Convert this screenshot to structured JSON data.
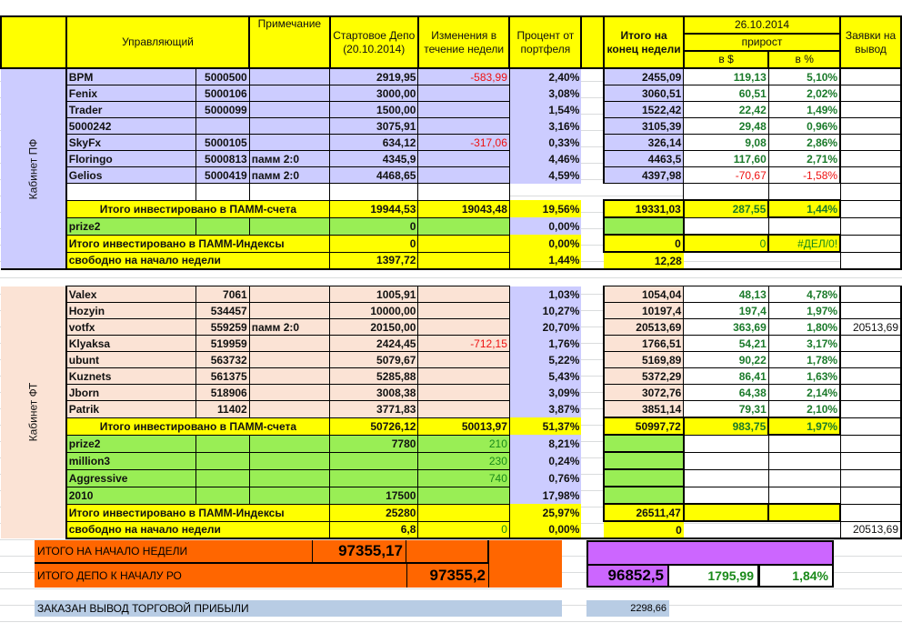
{
  "header": {
    "manager": "Управляющий",
    "note": "Примечание",
    "start": "Стартовое Депо (20.10.2014)",
    "change": "Изменения в течение недели",
    "pct": "Процент от портфеля",
    "end": "Итого на конец недели",
    "date": "26.10.2014",
    "growth": "прирост",
    "in_usd": "в $",
    "in_pct": "в %",
    "withdraw": "Заявки на вывод"
  },
  "sections": [
    {
      "label": "Кабинет ПФ",
      "key": "pf",
      "blank_row": true,
      "managers": [
        {
          "name": "BPM",
          "id": "5000500",
          "note": "",
          "start": "2919,95",
          "change": "-583,99",
          "pct": "2,40%",
          "end": "2455,09",
          "gain_usd": "119,13",
          "gain_pct": "5,10%",
          "withdraw": ""
        },
        {
          "name": "Fenix",
          "id": "5000106",
          "note": "",
          "start": "3000,00",
          "change": "",
          "pct": "3,08%",
          "end": "3060,51",
          "gain_usd": "60,51",
          "gain_pct": "2,02%",
          "withdraw": ""
        },
        {
          "name": "Trader",
          "id": "5000099",
          "note": "",
          "start": "1500,00",
          "change": "",
          "pct": "1,54%",
          "end": "1522,42",
          "gain_usd": "22,42",
          "gain_pct": "1,49%",
          "withdraw": ""
        },
        {
          "name": "5000242",
          "id": "",
          "note": "",
          "start": "3075,91",
          "change": "",
          "pct": "3,16%",
          "end": "3105,39",
          "gain_usd": "29,48",
          "gain_pct": "0,96%",
          "withdraw": ""
        },
        {
          "name": "SkyFx",
          "id": "5000105",
          "note": "",
          "start": "634,12",
          "change": "-317,06",
          "pct": "0,33%",
          "end": "326,14",
          "gain_usd": "9,08",
          "gain_pct": "2,86%",
          "withdraw": ""
        },
        {
          "name": "Floringo",
          "id": "5000813",
          "note": "памм 2:0",
          "start": "4345,9",
          "change": "",
          "pct": "4,46%",
          "end": "4463,5",
          "gain_usd": "117,60",
          "gain_pct": "2,71%",
          "withdraw": ""
        },
        {
          "name": "Gelios",
          "id": "5000419",
          "note": "памм 2:0",
          "start": "4468,65",
          "change": "",
          "pct": "4,59%",
          "end": "4397,98",
          "gain_usd": "-70,67",
          "gain_pct": "-1,58%",
          "withdraw": ""
        }
      ],
      "total_accounts": {
        "label": "Итого инвестировано в ПАММ-счета",
        "start": "19944,53",
        "change": "19043,48",
        "pct": "19,56%",
        "end": "19331,03",
        "gain_usd": "287,55",
        "gain_pct": "1,44%"
      },
      "indexes": [
        {
          "name": "prize2",
          "start": "0",
          "change": "",
          "pct": "0,00%"
        }
      ],
      "total_indexes": {
        "label": "Итого инвестировано в ПАММ-Индексы",
        "start": "0",
        "pct": "0,00%",
        "end": "0",
        "gain_usd": "0",
        "gain_pct": "#ДЕЛ/0!"
      },
      "free": {
        "label": "свободно на начало недели",
        "start": "1397,72",
        "change": "",
        "pct": "1,44%",
        "end": "12,28",
        "withdraw": ""
      }
    },
    {
      "label": "Кабинет ФТ",
      "key": "ft",
      "blank_row": false,
      "managers": [
        {
          "name": "Valex",
          "id": "7061",
          "note": "",
          "start": "1005,91",
          "change": "",
          "pct": "1,03%",
          "end": "1054,04",
          "gain_usd": "48,13",
          "gain_pct": "4,78%",
          "withdraw": ""
        },
        {
          "name": "Hozyin",
          "id": "534457",
          "note": "",
          "start": "10000,00",
          "change": "",
          "pct": "10,27%",
          "end": "10197,4",
          "gain_usd": "197,4",
          "gain_pct": "1,97%",
          "withdraw": ""
        },
        {
          "name": "votfx",
          "id": "559259",
          "note": "памм 2:0",
          "start": "20150,00",
          "change": "",
          "pct": "20,70%",
          "end": "20513,69",
          "gain_usd": "363,69",
          "gain_pct": "1,80%",
          "withdraw": "20513,69"
        },
        {
          "name": "Klyaksa",
          "id": "519959",
          "note": "",
          "start": "2424,45",
          "change": "-712,15",
          "pct": "1,76%",
          "end": "1766,51",
          "gain_usd": "54,21",
          "gain_pct": "3,17%",
          "withdraw": ""
        },
        {
          "name": "ubunt",
          "id": "563732",
          "note": "",
          "start": "5079,67",
          "change": "",
          "pct": "5,22%",
          "end": "5169,89",
          "gain_usd": "90,22",
          "gain_pct": "1,78%",
          "withdraw": ""
        },
        {
          "name": "Kuznets",
          "id": "561375",
          "note": "",
          "start": "5285,88",
          "change": "",
          "pct": "5,43%",
          "end": "5372,29",
          "gain_usd": "86,41",
          "gain_pct": "1,63%",
          "withdraw": ""
        },
        {
          "name": "Jborn",
          "id": "518906",
          "note": "",
          "start": "3008,38",
          "change": "",
          "pct": "3,09%",
          "end": "3072,76",
          "gain_usd": "64,38",
          "gain_pct": "2,14%",
          "withdraw": ""
        },
        {
          "name": "Patrik",
          "id": "11402",
          "note": "",
          "start": "3771,83",
          "change": "",
          "pct": "3,87%",
          "end": "3851,14",
          "gain_usd": "79,31",
          "gain_pct": "2,10%",
          "withdraw": ""
        }
      ],
      "total_accounts": {
        "label": "Итого инвестировано в ПАММ-счета",
        "start": "50726,12",
        "change": "50013,97",
        "pct": "51,37%",
        "end": "50997,72",
        "gain_usd": "983,75",
        "gain_pct": "1,97%"
      },
      "indexes": [
        {
          "name": "prize2",
          "start": "7780",
          "change": "210",
          "pct": "8,21%"
        },
        {
          "name": "million3",
          "start": "",
          "change": "230",
          "pct": "0,24%"
        },
        {
          "name": "Aggressive",
          "start": "",
          "change": "740",
          "pct": "0,76%"
        },
        {
          "name": "2010",
          "start": "17500",
          "change": "",
          "pct": "17,98%"
        }
      ],
      "total_indexes": {
        "label": "Итого инвестировано в ПАММ-Индексы",
        "start": "25280",
        "pct": "25,97%",
        "end": "26511,47",
        "gain_usd": "",
        "gain_pct": ""
      },
      "free": {
        "label": "свободно на начало недели",
        "start": "6,8",
        "change": "0",
        "pct": "0,00%",
        "end": "0",
        "withdraw": "20513,69"
      }
    }
  ],
  "summary": {
    "week_start_label": "ИТОГО НА НАЧАЛО НЕДЕЛИ",
    "week_start_value": "97355,17",
    "depo_label": "ИТОГО ДЕПО К НАЧАЛУ РО",
    "depo_value": "97355,2",
    "end_total": "96852,5",
    "gain_usd": "1795,99",
    "gain_pct": "1,84%",
    "withdraw_label": "ЗАКАЗАН ВЫВОД ТОРГОВОЙ ПРИБЫЛИ",
    "withdraw_value": "2298,66"
  },
  "colors": {
    "yellow": "#ffff00",
    "pf": "#ccccff",
    "ft": "#fbe3d5",
    "green": "#99ee55",
    "orange": "#ff6600",
    "purple": "#cc66ff",
    "blue": "#b8cce4"
  }
}
